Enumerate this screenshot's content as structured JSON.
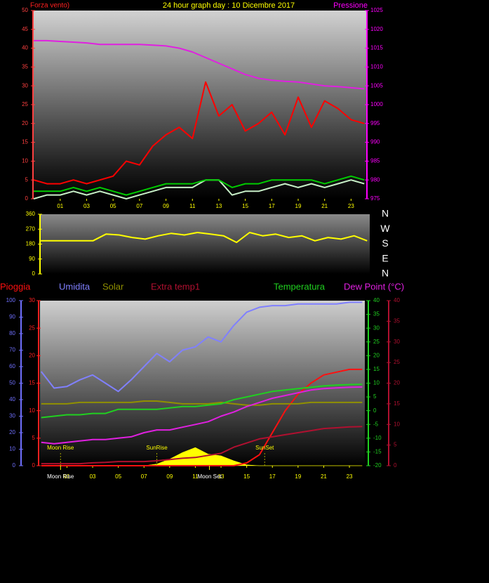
{
  "chart_data": [
    {
      "type": "line",
      "title": "24 hour graph day : 10 Dicembre 2017",
      "y_label": "Forza vento)",
      "y2_label": "Pressione",
      "x": [
        -1,
        0,
        1,
        2,
        3,
        4,
        5,
        6,
        7,
        8,
        9,
        10,
        11,
        12,
        13,
        14,
        15,
        16,
        17,
        18,
        19,
        20,
        21,
        22,
        23,
        24
      ],
      "xlim": [
        -1.06,
        24.2
      ],
      "xticks": [
        {
          "value": 1,
          "label": "01"
        },
        {
          "value": 3,
          "label": "03"
        },
        {
          "value": 5,
          "label": "05"
        },
        {
          "value": 7,
          "label": "07"
        },
        {
          "value": 9,
          "label": "09"
        },
        {
          "value": 11,
          "label": "11"
        },
        {
          "value": 13,
          "label": "13"
        },
        {
          "value": 15,
          "label": "15"
        },
        {
          "value": 17,
          "label": "17"
        },
        {
          "value": 19,
          "label": "19"
        },
        {
          "value": 21,
          "label": "21"
        },
        {
          "value": 23,
          "label": "23"
        }
      ],
      "ylim": [
        0,
        50
      ],
      "yticks": [
        0,
        5,
        10,
        15,
        20,
        25,
        30,
        35,
        40,
        45,
        50
      ],
      "y2lim": [
        975,
        1025
      ],
      "y2ticks": [
        975,
        980,
        985,
        990,
        995,
        1000,
        1005,
        1010,
        1015,
        1020,
        1025
      ],
      "series": [
        {
          "color": "#ff0000",
          "values": [
            5,
            4,
            4,
            5,
            4,
            5,
            6,
            10,
            9,
            14,
            17,
            19,
            16,
            31,
            22,
            25,
            18,
            20,
            23,
            17,
            27,
            19,
            26,
            24,
            21,
            20
          ]
        },
        {
          "color": "#c8f0c8",
          "values": [
            0,
            1,
            1,
            2,
            1,
            2,
            1,
            0,
            1,
            2,
            3,
            3,
            3,
            5,
            5,
            1,
            2,
            2,
            3,
            4,
            3,
            4,
            3,
            4,
            5,
            4
          ]
        },
        {
          "color": "#00cc00",
          "values": [
            2,
            2,
            2,
            3,
            2,
            3,
            2,
            1,
            2,
            3,
            4,
            4,
            4,
            5,
            5,
            3,
            4,
            4,
            5,
            5,
            5,
            5,
            4,
            5,
            6,
            5
          ]
        },
        {
          "color": "#e020e0",
          "axis": "y2",
          "values": [
            1017,
            1017,
            1016.8,
            1016.6,
            1016.4,
            1016,
            1016,
            1016,
            1016,
            1015.8,
            1015.6,
            1015,
            1014,
            1012.5,
            1011,
            1009.5,
            1008,
            1007,
            1006.5,
            1006.2,
            1006,
            1005.5,
            1005,
            1004.8,
            1004.5,
            1004.2
          ]
        }
      ]
    },
    {
      "type": "line",
      "x": [
        -1,
        0,
        1,
        2,
        3,
        4,
        5,
        6,
        7,
        8,
        9,
        10,
        11,
        12,
        13,
        14,
        15,
        16,
        17,
        18,
        19,
        20,
        21,
        22,
        23,
        24
      ],
      "xlim": [
        -1.06,
        24.2
      ],
      "ylim": [
        0,
        360
      ],
      "yticks": [
        0,
        90,
        180,
        270,
        360
      ],
      "y2lim": [
        0,
        360
      ],
      "y2ticks": [
        {
          "value": 0,
          "label": "N"
        },
        {
          "value": 90,
          "label": "E"
        },
        {
          "value": 180,
          "label": "S"
        },
        {
          "value": 270,
          "label": "W"
        },
        {
          "value": 360,
          "label": "N"
        }
      ],
      "series": [
        {
          "color": "#ffff00",
          "values": [
            200,
            200,
            200,
            200,
            200,
            240,
            235,
            220,
            210,
            230,
            245,
            235,
            250,
            240,
            230,
            190,
            250,
            230,
            240,
            220,
            230,
            200,
            220,
            210,
            230,
            200
          ]
        }
      ]
    },
    {
      "type": "line",
      "x": [
        -1,
        0,
        1,
        2,
        3,
        4,
        5,
        6,
        7,
        8,
        9,
        10,
        11,
        12,
        13,
        14,
        15,
        16,
        17,
        18,
        19,
        20,
        21,
        22,
        23,
        24
      ],
      "xlim": [
        -1.1,
        24.2
      ],
      "xticks": [
        {
          "value": 1,
          "label": "01"
        },
        {
          "value": 3,
          "label": "03"
        },
        {
          "value": 5,
          "label": "05"
        },
        {
          "value": 7,
          "label": "07"
        },
        {
          "value": 9,
          "label": "09"
        },
        {
          "value": 11,
          "label": "11"
        },
        {
          "value": 13,
          "label": "13"
        },
        {
          "value": 15,
          "label": "15"
        },
        {
          "value": 17,
          "label": "17"
        },
        {
          "value": 19,
          "label": "19"
        },
        {
          "value": 21,
          "label": "21"
        },
        {
          "value": 23,
          "label": "23"
        }
      ],
      "ylim": [
        0,
        100
      ],
      "yticks": [
        0,
        10,
        20,
        30,
        40,
        50,
        60,
        70,
        80,
        90,
        100
      ],
      "y2lim": [
        0,
        30
      ],
      "y2ticks": [
        0,
        5,
        10,
        15,
        20,
        25,
        30
      ],
      "y3lim": [
        -20,
        40
      ],
      "y3ticks": [
        -20,
        -15,
        -10,
        -5,
        0,
        5,
        10,
        15,
        20,
        25,
        30,
        35,
        40
      ],
      "y4lim": [
        0,
        40
      ],
      "y4ticks": [
        0,
        5,
        10,
        15,
        20,
        25,
        30,
        35,
        40
      ],
      "axis_colors": {
        "y": "#7070ff",
        "y2": "#ff2020",
        "y3": "#20d020",
        "y4": "#b01030"
      },
      "series": [
        {
          "color": "#ffff00",
          "area": true,
          "axis": "y",
          "values": [
            0,
            0,
            0,
            0,
            0,
            0,
            0,
            0,
            0,
            1,
            4,
            8,
            11,
            7,
            6,
            3,
            0.5,
            0,
            0,
            0,
            0,
            0,
            0,
            0,
            0,
            0
          ]
        },
        {
          "name": "Pioggia",
          "color": "#ff1010",
          "axis": "y2",
          "values": [
            0,
            0,
            0,
            0,
            0,
            0,
            0,
            0,
            0,
            0,
            0,
            0,
            0,
            0,
            0,
            0,
            0.5,
            2,
            6,
            10,
            13,
            15,
            16.5,
            17,
            17.5,
            17.5
          ]
        },
        {
          "name": "Umidita",
          "color": "#8080ff",
          "axis": "y",
          "values": [
            57,
            47,
            48,
            52,
            55,
            50,
            45,
            52,
            60,
            68,
            63,
            70,
            72,
            78,
            75,
            85,
            93,
            96,
            97,
            97,
            98,
            98,
            98,
            98,
            99,
            99
          ]
        },
        {
          "name": "Solar",
          "color": "#909000",
          "axis": "y3",
          "values": [
            2.5,
            2.5,
            2.5,
            3,
            3,
            3,
            3,
            3,
            3.5,
            3.5,
            3,
            2.5,
            2.5,
            2.5,
            3,
            2.5,
            2,
            2,
            2.5,
            2.5,
            2.5,
            3,
            3,
            3,
            3,
            3
          ]
        },
        {
          "name": "Extra temp1",
          "color": "#b01030",
          "axis": "y4",
          "values": [
            0.5,
            0.5,
            0.5,
            0.5,
            0.7,
            0.8,
            1,
            1,
            1,
            1.2,
            1.5,
            1.8,
            2,
            2.5,
            3,
            4.5,
            5.5,
            6.5,
            7,
            7.5,
            8,
            8.5,
            9,
            9.2,
            9.4,
            9.5
          ]
        },
        {
          "name": "Temperatura",
          "color": "#20d020",
          "axis": "y3",
          "values": [
            -2.5,
            -2,
            -1.5,
            -1.5,
            -1,
            -1,
            0.5,
            0.5,
            0.5,
            0.5,
            1,
            1.5,
            1.5,
            2,
            2.5,
            4,
            5,
            6,
            7,
            7.5,
            8,
            8.5,
            9,
            9.3,
            9.5,
            9.6
          ]
        },
        {
          "name": "Dew Point (°C)",
          "color": "#e020e0",
          "axis": "y3",
          "values": [
            -11.5,
            -12,
            -11.5,
            -11,
            -10.5,
            -10.5,
            -10,
            -9.5,
            -8,
            -7,
            -7,
            -6,
            -5,
            -4,
            -2,
            -0.5,
            1.5,
            3,
            4.5,
            5.5,
            6.5,
            7.5,
            8,
            8.3,
            8.5,
            8.6
          ]
        }
      ],
      "annotations": [
        {
          "text": "Moon Rise",
          "x": 0.5
        },
        {
          "text": "SunRise",
          "x": 8
        },
        {
          "text": "SunSet",
          "x": 16.4
        }
      ],
      "events": [
        {
          "text": "Moon Rise",
          "x": 0.5
        },
        {
          "text": "Moon Set",
          "x": 12.1
        }
      ]
    }
  ]
}
